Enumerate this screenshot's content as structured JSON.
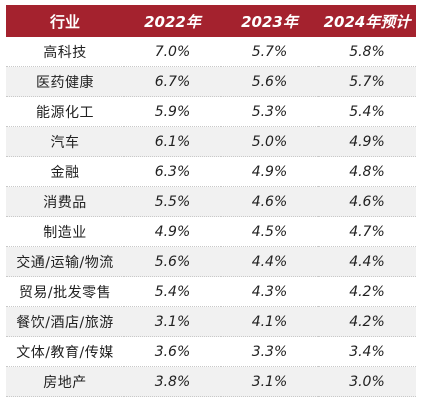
{
  "table": {
    "headers": [
      "行业",
      "2022年",
      "2023年",
      "2024年预计"
    ],
    "rows": [
      [
        "高科技",
        "7.0%",
        "5.7%",
        "5.8%"
      ],
      [
        "医药健康",
        "6.7%",
        "5.6%",
        "5.7%"
      ],
      [
        "能源化工",
        "5.9%",
        "5.3%",
        "5.4%"
      ],
      [
        "汽车",
        "6.1%",
        "5.0%",
        "4.9%"
      ],
      [
        "金融",
        "6.3%",
        "4.9%",
        "4.8%"
      ],
      [
        "消费品",
        "5.5%",
        "4.6%",
        "4.6%"
      ],
      [
        "制造业",
        "4.9%",
        "4.5%",
        "4.7%"
      ],
      [
        "交通/运输/物流",
        "5.6%",
        "4.4%",
        "4.4%"
      ],
      [
        "贸易/批发零售",
        "5.4%",
        "4.3%",
        "4.2%"
      ],
      [
        "餐饮/酒店/旅游",
        "3.1%",
        "4.1%",
        "4.2%"
      ],
      [
        "文体/教育/传媒",
        "3.6%",
        "3.3%",
        "3.4%"
      ],
      [
        "房地产",
        "3.8%",
        "3.1%",
        "3.0%"
      ]
    ]
  },
  "colors": {
    "header_bg": "#a4222e",
    "header_text": "#ffffff",
    "stripe": "#f1f1f1"
  }
}
